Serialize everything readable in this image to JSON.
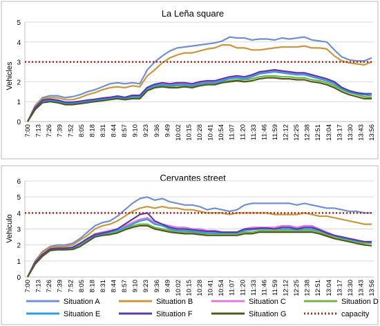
{
  "chart_data": [
    {
      "type": "line",
      "title": "La Leña square",
      "ylabel": "Vehicles",
      "xlabel": "",
      "ylim": [
        0,
        5
      ],
      "yticks": [
        0,
        1,
        2,
        3,
        4,
        5
      ],
      "grid": true,
      "xticks": [
        "7:00",
        "7:13",
        "7:26",
        "7:39",
        "7:52",
        "8:05",
        "8:18",
        "8:31",
        "8:44",
        "8:57",
        "9:10",
        "9:23",
        "9:36",
        "9:49",
        "10:02",
        "10:15",
        "10:28",
        "10:41",
        "10:54",
        "11:07",
        "11:20",
        "11:33",
        "11:46",
        "11:59",
        "12:12",
        "12:25",
        "12:38",
        "12:51",
        "13:04",
        "13:17",
        "13:30",
        "13:43",
        "13:56"
      ],
      "capacity": 3,
      "series": [
        {
          "name": "Situation A",
          "color": "#6f8fcf",
          "values": [
            0,
            0.8,
            1.2,
            1.3,
            1.3,
            1.2,
            1.25,
            1.35,
            1.5,
            1.6,
            1.75,
            1.9,
            1.95,
            1.9,
            1.95,
            1.9,
            2.6,
            3.0,
            3.3,
            3.55,
            3.7,
            3.75,
            3.8,
            3.85,
            3.9,
            3.95,
            4.05,
            4.25,
            4.2,
            4.2,
            4.1,
            4.15,
            4.15,
            4.1,
            4.2,
            4.15,
            4.2,
            4.25,
            4.1,
            4.05,
            4.0,
            3.6,
            3.25,
            3.1,
            3.05,
            3.05,
            3.2
          ]
        },
        {
          "name": "Situation B",
          "color": "#c8963e",
          "values": [
            0,
            0.75,
            1.15,
            1.2,
            1.2,
            1.1,
            1.1,
            1.2,
            1.35,
            1.45,
            1.6,
            1.7,
            1.75,
            1.7,
            1.8,
            1.75,
            2.3,
            2.6,
            2.95,
            3.2,
            3.35,
            3.45,
            3.45,
            3.55,
            3.65,
            3.7,
            3.85,
            3.85,
            3.7,
            3.7,
            3.6,
            3.6,
            3.65,
            3.7,
            3.75,
            3.75,
            3.75,
            3.8,
            3.7,
            3.7,
            3.65,
            3.3,
            3.05,
            2.95,
            2.9,
            2.85,
            3.0
          ]
        },
        {
          "name": "Situation C",
          "color": "#e07ad8",
          "values": [
            0,
            0.7,
            1.05,
            1.1,
            1.05,
            0.95,
            0.95,
            1.0,
            1.05,
            1.1,
            1.15,
            1.2,
            1.25,
            1.2,
            1.3,
            1.3,
            1.7,
            1.85,
            1.9,
            1.85,
            1.9,
            1.9,
            1.85,
            1.95,
            2.0,
            2.0,
            2.1,
            2.2,
            2.25,
            2.2,
            2.3,
            2.45,
            2.5,
            2.55,
            2.5,
            2.45,
            2.4,
            2.4,
            2.3,
            2.2,
            2.1,
            1.95,
            1.7,
            1.55,
            1.45,
            1.4,
            1.4
          ]
        },
        {
          "name": "Situation D",
          "color": "#77b24a",
          "values": [
            0,
            0.65,
            1.0,
            1.05,
            1.0,
            0.9,
            0.9,
            0.95,
            1.0,
            1.05,
            1.1,
            1.15,
            1.2,
            1.15,
            1.2,
            1.2,
            1.6,
            1.75,
            1.8,
            1.75,
            1.8,
            1.8,
            1.75,
            1.85,
            1.9,
            1.9,
            2.0,
            2.05,
            2.1,
            2.1,
            2.15,
            2.25,
            2.3,
            2.3,
            2.25,
            2.25,
            2.2,
            2.2,
            2.1,
            2.05,
            1.95,
            1.8,
            1.6,
            1.45,
            1.35,
            1.25,
            1.2
          ]
        },
        {
          "name": "Situation E",
          "color": "#2e9be0",
          "values": [
            0,
            0.68,
            1.02,
            1.08,
            1.02,
            0.92,
            0.92,
            0.98,
            1.02,
            1.08,
            1.12,
            1.18,
            1.22,
            1.18,
            1.25,
            1.25,
            1.65,
            1.8,
            1.85,
            1.8,
            1.85,
            1.85,
            1.8,
            1.9,
            1.95,
            1.95,
            2.05,
            2.15,
            2.2,
            2.15,
            2.25,
            2.4,
            2.45,
            2.5,
            2.45,
            2.4,
            2.35,
            2.35,
            2.25,
            2.15,
            2.05,
            1.9,
            1.65,
            1.5,
            1.4,
            1.35,
            1.3
          ]
        },
        {
          "name": "Situation F",
          "color": "#5b3aa6",
          "values": [
            0,
            0.7,
            1.08,
            1.12,
            1.08,
            0.98,
            0.98,
            1.02,
            1.08,
            1.12,
            1.18,
            1.22,
            1.28,
            1.22,
            1.32,
            1.32,
            1.72,
            1.88,
            1.95,
            1.9,
            1.95,
            1.95,
            1.9,
            2.0,
            2.05,
            2.05,
            2.15,
            2.25,
            2.3,
            2.25,
            2.35,
            2.5,
            2.55,
            2.6,
            2.55,
            2.5,
            2.45,
            2.45,
            2.35,
            2.25,
            2.15,
            2.0,
            1.72,
            1.55,
            1.45,
            1.4,
            1.4
          ]
        },
        {
          "name": "Situation G",
          "color": "#4e5a1e",
          "values": [
            0,
            0.6,
            0.95,
            1.0,
            0.95,
            0.85,
            0.85,
            0.9,
            0.95,
            1.0,
            1.05,
            1.1,
            1.15,
            1.1,
            1.15,
            1.15,
            1.55,
            1.7,
            1.75,
            1.7,
            1.7,
            1.75,
            1.7,
            1.8,
            1.85,
            1.85,
            1.95,
            2.0,
            2.05,
            2.0,
            2.05,
            2.15,
            2.2,
            2.2,
            2.15,
            2.15,
            2.1,
            2.1,
            2.0,
            1.95,
            1.85,
            1.7,
            1.5,
            1.35,
            1.25,
            1.15,
            1.15
          ]
        }
      ]
    },
    {
      "type": "line",
      "title": "Cervantes street",
      "ylabel": "Vehiculo",
      "xlabel": "",
      "ylim": [
        0,
        6
      ],
      "yticks": [
        0,
        1,
        2,
        3,
        4,
        5,
        6
      ],
      "grid": true,
      "xticks": [
        "7:00",
        "7:13",
        "7:26",
        "7:39",
        "7:52",
        "8:05",
        "8:18",
        "8:31",
        "8:44",
        "8:57",
        "9:10",
        "9:23",
        "9:36",
        "9:49",
        "10:02",
        "10:15",
        "10:28",
        "10:41",
        "10:54",
        "11:07",
        "11:20",
        "11:33",
        "11:46",
        "11:59",
        "12:12",
        "12:25",
        "12:38",
        "12:51",
        "13:04",
        "13:17",
        "13:30",
        "13:43",
        "13:56"
      ],
      "capacity": 4,
      "series": [
        {
          "name": "Situation A",
          "color": "#6f8fcf",
          "values": [
            0,
            1.0,
            1.6,
            1.9,
            2.0,
            2.0,
            2.1,
            2.4,
            2.8,
            3.2,
            3.4,
            3.5,
            3.8,
            4.2,
            4.6,
            4.9,
            5.0,
            4.8,
            4.9,
            4.7,
            4.6,
            4.5,
            4.5,
            4.4,
            4.2,
            4.3,
            4.2,
            4.1,
            4.2,
            4.5,
            4.6,
            4.6,
            4.6,
            4.6,
            4.6,
            4.6,
            4.5,
            4.6,
            4.5,
            4.4,
            4.3,
            4.3,
            4.2,
            4.1,
            4.1,
            4.0,
            4.0
          ]
        },
        {
          "name": "Situation B",
          "color": "#c8963e",
          "values": [
            0,
            0.95,
            1.55,
            1.85,
            1.9,
            1.9,
            2.0,
            2.3,
            2.6,
            3.0,
            3.2,
            3.3,
            3.5,
            3.8,
            4.1,
            4.3,
            4.4,
            4.3,
            4.4,
            4.3,
            4.3,
            4.2,
            4.2,
            4.1,
            4.0,
            4.0,
            4.0,
            3.9,
            4.0,
            4.0,
            4.0,
            4.0,
            4.0,
            3.9,
            3.9,
            3.9,
            3.9,
            4.0,
            3.9,
            3.8,
            3.8,
            3.7,
            3.6,
            3.5,
            3.4,
            3.3,
            3.3
          ]
        },
        {
          "name": "Situation C",
          "color": "#e07ad8",
          "values": [
            0,
            0.9,
            1.4,
            1.75,
            1.8,
            1.8,
            1.85,
            2.1,
            2.4,
            2.7,
            2.8,
            2.9,
            3.0,
            3.2,
            3.4,
            3.6,
            3.7,
            3.4,
            3.3,
            3.2,
            3.1,
            3.1,
            3.0,
            3.0,
            2.9,
            2.9,
            2.8,
            2.8,
            2.8,
            3.0,
            3.1,
            3.1,
            3.1,
            3.1,
            3.2,
            3.2,
            3.1,
            3.2,
            3.2,
            3.0,
            2.8,
            2.6,
            2.5,
            2.4,
            2.3,
            2.2,
            2.2
          ]
        },
        {
          "name": "Situation D",
          "color": "#77b24a",
          "values": [
            0,
            0.85,
            1.35,
            1.7,
            1.75,
            1.75,
            1.8,
            2.0,
            2.3,
            2.55,
            2.65,
            2.7,
            2.8,
            3.0,
            3.2,
            3.3,
            3.3,
            3.1,
            3.0,
            2.9,
            2.8,
            2.8,
            2.8,
            2.7,
            2.7,
            2.7,
            2.7,
            2.7,
            2.7,
            2.8,
            2.8,
            2.9,
            2.9,
            2.9,
            2.9,
            2.9,
            2.9,
            2.9,
            2.9,
            2.8,
            2.6,
            2.5,
            2.4,
            2.3,
            2.2,
            2.1,
            2.1
          ]
        },
        {
          "name": "Situation E",
          "color": "#2e9be0",
          "values": [
            0,
            0.88,
            1.4,
            1.72,
            1.78,
            1.78,
            1.82,
            2.05,
            2.35,
            2.6,
            2.7,
            2.8,
            2.9,
            3.1,
            3.3,
            3.5,
            3.6,
            3.3,
            3.2,
            3.0,
            2.9,
            2.9,
            2.85,
            2.8,
            2.75,
            2.75,
            2.75,
            2.75,
            2.75,
            2.9,
            2.95,
            3.0,
            3.0,
            3.0,
            3.0,
            3.0,
            2.95,
            3.0,
            3.0,
            2.9,
            2.7,
            2.6,
            2.45,
            2.35,
            2.25,
            2.2,
            2.15
          ]
        },
        {
          "name": "Situation F",
          "color": "#5b3aa6",
          "values": [
            0,
            0.9,
            1.42,
            1.75,
            1.8,
            1.8,
            1.85,
            2.1,
            2.4,
            2.65,
            2.75,
            2.85,
            3.0,
            3.3,
            3.6,
            3.9,
            4.0,
            3.5,
            3.3,
            3.1,
            3.0,
            3.0,
            2.95,
            2.9,
            2.85,
            2.85,
            2.8,
            2.8,
            2.8,
            3.0,
            3.0,
            3.05,
            3.05,
            3.0,
            3.1,
            3.1,
            3.0,
            3.1,
            3.1,
            2.95,
            2.75,
            2.6,
            2.5,
            2.4,
            2.3,
            2.2,
            2.2
          ]
        },
        {
          "name": "Situation G",
          "color": "#4e5a1e",
          "values": [
            0,
            0.8,
            1.3,
            1.65,
            1.7,
            1.7,
            1.72,
            1.9,
            2.2,
            2.5,
            2.6,
            2.65,
            2.75,
            2.95,
            3.1,
            3.2,
            3.2,
            3.0,
            2.9,
            2.8,
            2.75,
            2.7,
            2.7,
            2.65,
            2.6,
            2.6,
            2.6,
            2.6,
            2.6,
            2.7,
            2.7,
            2.8,
            2.8,
            2.8,
            2.8,
            2.8,
            2.8,
            2.8,
            2.8,
            2.7,
            2.55,
            2.4,
            2.3,
            2.2,
            2.1,
            2.0,
            1.95
          ]
        }
      ]
    }
  ],
  "legend": {
    "placement": "bottom",
    "items": [
      {
        "name": "Situation A",
        "color": "#6f8fcf",
        "style": "solid"
      },
      {
        "name": "Situation B",
        "color": "#c8963e",
        "style": "solid"
      },
      {
        "name": "Situation C",
        "color": "#e07ad8",
        "style": "solid"
      },
      {
        "name": "Situation D",
        "color": "#77b24a",
        "style": "solid"
      },
      {
        "name": "Situation E",
        "color": "#2e9be0",
        "style": "solid"
      },
      {
        "name": "Situation F",
        "color": "#5b3aa6",
        "style": "solid"
      },
      {
        "name": "Situation G",
        "color": "#4e5a1e",
        "style": "solid"
      },
      {
        "name": "capacity",
        "color": "#a52a1a",
        "style": "dotted"
      }
    ]
  }
}
